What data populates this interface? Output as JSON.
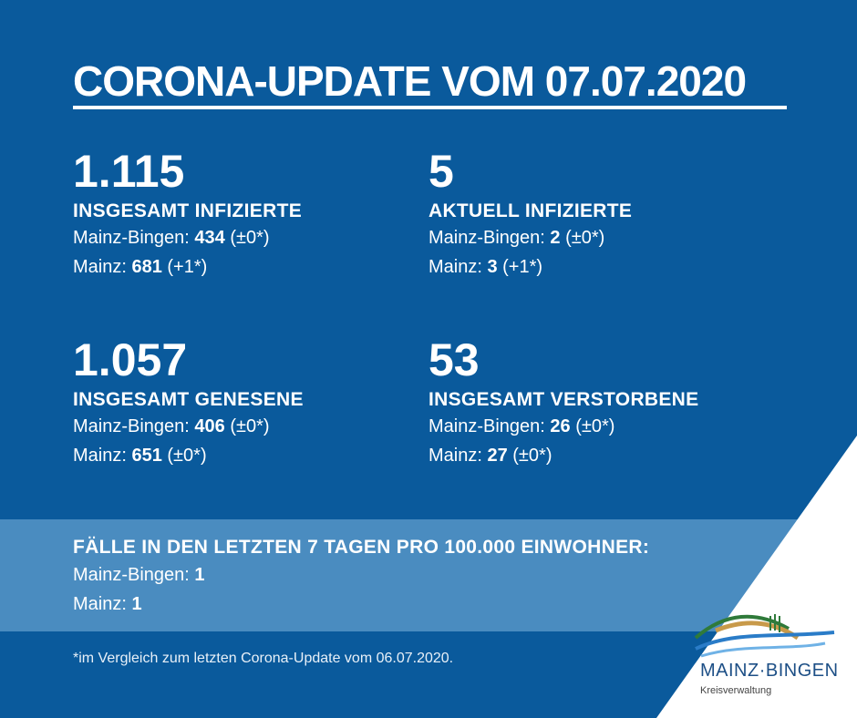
{
  "title": "CORONA-UPDATE VOM 07.07.2020",
  "stats": [
    {
      "big": "1.115",
      "label": "INSGESAMT INFIZIERTE",
      "l1_prefix": "Mainz-Bingen: ",
      "l1_value": "434",
      "l1_suffix": " (±0*)",
      "l2_prefix": "Mainz: ",
      "l2_value": "681",
      "l2_suffix": " (+1*)"
    },
    {
      "big": "5",
      "label": "AKTUELL INFIZIERTE",
      "l1_prefix": "Mainz-Bingen: ",
      "l1_value": "2",
      "l1_suffix": " (±0*)",
      "l2_prefix": "Mainz: ",
      "l2_value": "3",
      "l2_suffix": " (+1*)"
    },
    {
      "big": "1.057",
      "label": "INSGESAMT GENESENE",
      "l1_prefix": "Mainz-Bingen: ",
      "l1_value": "406",
      "l1_suffix": " (±0*)",
      "l2_prefix": "Mainz: ",
      "l2_value": "651",
      "l2_suffix": " (±0*)"
    },
    {
      "big": "53",
      "label": "INSGESAMT VERSTORBENE",
      "l1_prefix": "Mainz-Bingen: ",
      "l1_value": "26",
      "l1_suffix": " (±0*)",
      "l2_prefix": "Mainz: ",
      "l2_value": "27",
      "l2_suffix": " (±0*)"
    }
  ],
  "incidence": {
    "heading": "FÄLLE IN DEN LETZTEN 7 TAGEN PRO 100.000 EINWOHNER:",
    "r1_prefix": "Mainz-Bingen: ",
    "r1_value": "1",
    "r2_prefix": "Mainz: ",
    "r2_value": "1"
  },
  "footnote": "*im Vergleich zum letzten Corona-Update vom 06.07.2020.",
  "logo": {
    "name": "MAINZ·BINGEN",
    "sub": "Kreisverwaltung"
  },
  "colors": {
    "background": "#0a5a9c",
    "band": "#4a8cc0",
    "logo_blue": "#1d4f86"
  }
}
